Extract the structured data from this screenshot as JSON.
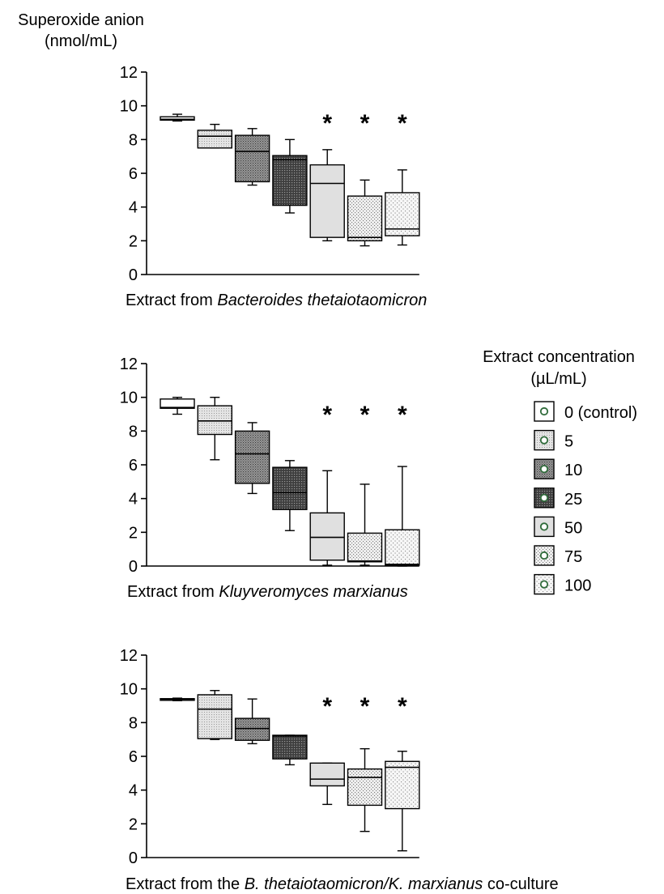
{
  "y_axis_title": [
    "Superoxide anion",
    "(nmol/mL)"
  ],
  "legend": {
    "title": [
      "Extract concentration",
      "(µL/mL)"
    ],
    "items": [
      "0 (control)",
      "5",
      "10",
      "25",
      "50",
      "75",
      "100"
    ],
    "fills": [
      "#ffffff",
      "#e8e8e8",
      "#8a8a8a",
      "#4a4a4a",
      "#e0e0e0",
      "#f0f0f0",
      "#f6f6f6"
    ]
  },
  "significance_marker": "*",
  "chart_data": [
    {
      "type": "boxplot",
      "caption": [
        "Extract from ",
        "Bacteroides thetaiotaomicron",
        ""
      ],
      "ylabel": "Superoxide anion (nmol/mL)",
      "ylim": [
        0,
        12
      ],
      "yticks": [
        "0",
        "2",
        "4",
        "6",
        "8",
        "10",
        "12"
      ],
      "categories": [
        "0 (control)",
        "5",
        "10",
        "25",
        "50",
        "75",
        "100"
      ],
      "boxes": [
        {
          "min": 9.1,
          "q1": 9.15,
          "median": 9.2,
          "q3": 9.35,
          "max": 9.5
        },
        {
          "min": 7.5,
          "q1": 7.5,
          "median": 8.2,
          "q3": 8.55,
          "max": 8.9
        },
        {
          "min": 5.3,
          "q1": 5.5,
          "median": 7.3,
          "q3": 8.25,
          "max": 8.65
        },
        {
          "min": 3.65,
          "q1": 4.1,
          "median": 6.8,
          "q3": 7.05,
          "max": 8.0
        },
        {
          "min": 2.0,
          "q1": 2.2,
          "median": 5.4,
          "q3": 6.5,
          "max": 7.4
        },
        {
          "min": 1.7,
          "q1": 2.0,
          "median": 2.2,
          "q3": 4.65,
          "max": 5.6
        },
        {
          "min": 1.75,
          "q1": 2.3,
          "median": 2.7,
          "q3": 4.85,
          "max": 6.2
        }
      ],
      "significant": [
        false,
        false,
        false,
        false,
        true,
        true,
        true
      ]
    },
    {
      "type": "boxplot",
      "caption": [
        "Extract from ",
        "Kluyveromyces marxianus",
        ""
      ],
      "ylabel": "Superoxide anion (nmol/mL)",
      "ylim": [
        0,
        12
      ],
      "yticks": [
        "0",
        "2",
        "4",
        "6",
        "8",
        "10",
        "12"
      ],
      "categories": [
        "0 (control)",
        "5",
        "10",
        "25",
        "50",
        "75",
        "100"
      ],
      "boxes": [
        {
          "min": 9.0,
          "q1": 9.35,
          "median": 9.4,
          "q3": 9.9,
          "max": 10.0
        },
        {
          "min": 6.3,
          "q1": 7.8,
          "median": 8.6,
          "q3": 9.5,
          "max": 10.0
        },
        {
          "min": 4.3,
          "q1": 4.9,
          "median": 6.65,
          "q3": 8.0,
          "max": 8.5
        },
        {
          "min": 2.1,
          "q1": 3.35,
          "median": 4.35,
          "q3": 5.85,
          "max": 6.25
        },
        {
          "min": 0.05,
          "q1": 0.35,
          "median": 1.7,
          "q3": 3.15,
          "max": 5.65
        },
        {
          "min": 0.05,
          "q1": 0.25,
          "median": 0.3,
          "q3": 1.95,
          "max": 4.85
        },
        {
          "min": 0.0,
          "q1": 0.05,
          "median": 0.1,
          "q3": 2.15,
          "max": 5.9
        }
      ],
      "significant": [
        false,
        false,
        false,
        false,
        true,
        true,
        true
      ]
    },
    {
      "type": "boxplot",
      "caption": [
        "Extract from the ",
        "B. thetaiotaomicron/K. marxianus",
        " co-culture"
      ],
      "ylabel": "Superoxide anion (nmol/mL)",
      "ylim": [
        0,
        12
      ],
      "yticks": [
        "0",
        "2",
        "4",
        "6",
        "8",
        "10",
        "12"
      ],
      "categories": [
        "0 (control)",
        "5",
        "10",
        "25",
        "50",
        "75",
        "100"
      ],
      "boxes": [
        {
          "min": 9.3,
          "q1": 9.32,
          "median": 9.38,
          "q3": 9.42,
          "max": 9.45
        },
        {
          "min": 7.0,
          "q1": 7.05,
          "median": 8.8,
          "q3": 9.65,
          "max": 9.9
        },
        {
          "min": 6.75,
          "q1": 6.95,
          "median": 7.65,
          "q3": 8.25,
          "max": 9.4
        },
        {
          "min": 5.5,
          "q1": 5.85,
          "median": 7.2,
          "q3": 7.25,
          "max": 7.25
        },
        {
          "min": 3.15,
          "q1": 4.25,
          "median": 4.65,
          "q3": 5.6,
          "max": 5.6
        },
        {
          "min": 1.55,
          "q1": 3.1,
          "median": 4.75,
          "q3": 5.25,
          "max": 6.45
        },
        {
          "min": 0.4,
          "q1": 2.9,
          "median": 5.35,
          "q3": 5.7,
          "max": 6.3
        }
      ],
      "significant": [
        false,
        false,
        false,
        false,
        true,
        true,
        true
      ]
    }
  ]
}
